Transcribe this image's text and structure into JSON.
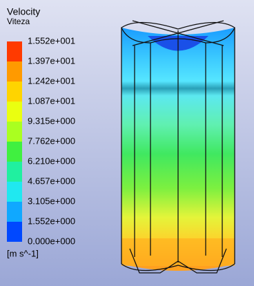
{
  "legend": {
    "title": "Velocity",
    "subtitle": "Viteza",
    "labels": [
      "1.552e+001",
      "1.397e+001",
      "1.242e+001",
      "1.087e+001",
      "9.315e+000",
      "7.762e+000",
      "6.210e+000",
      "4.657e+000",
      "3.105e+000",
      "1.552e+000",
      "0.000e+000"
    ],
    "unit": "[m s^-1]"
  }
}
